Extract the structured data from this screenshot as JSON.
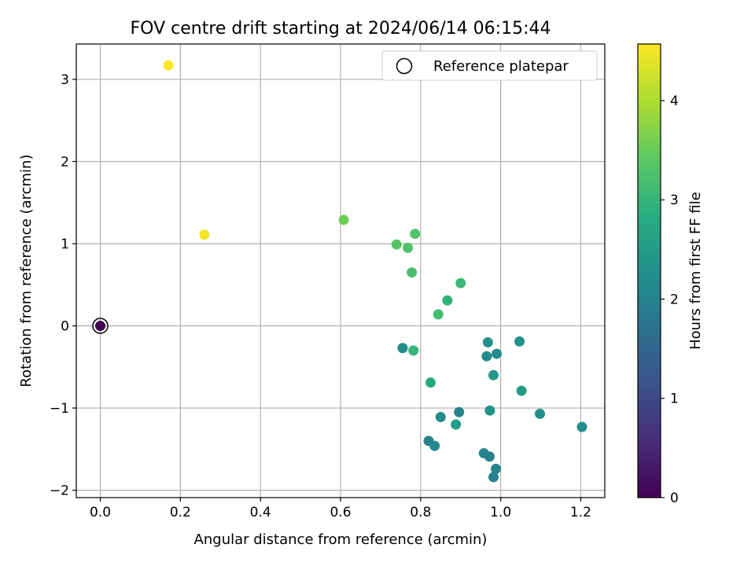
{
  "chart_data": {
    "type": "scatter",
    "title": "FOV centre drift starting at 2024/06/14 06:15:44",
    "xlabel": "Angular distance from reference (arcmin)",
    "ylabel": "Rotation from reference (arcmin)",
    "xlim": [
      -0.06,
      1.26
    ],
    "ylim": [
      -2.09,
      3.43
    ],
    "xticks": [
      0.0,
      0.2,
      0.4,
      0.6,
      0.8,
      1.0,
      1.2
    ],
    "xtick_labels": [
      "0.0",
      "0.2",
      "0.4",
      "0.6",
      "0.8",
      "1.0",
      "1.2"
    ],
    "yticks": [
      -2,
      -1,
      0,
      1,
      2,
      3
    ],
    "ytick_labels": [
      "−2",
      "−1",
      "0",
      "1",
      "2",
      "3"
    ],
    "grid": true,
    "legend": {
      "placement": "top-right",
      "entries": [
        "Reference platepar"
      ]
    },
    "colorbar": {
      "label": "Hours from first FF file",
      "colormap": "viridis",
      "range": [
        0,
        4.57
      ],
      "ticks": [
        0,
        1,
        2,
        3,
        4
      ],
      "tick_labels": [
        "0",
        "1",
        "2",
        "3",
        "4"
      ]
    },
    "reference_point": {
      "x": 0.0,
      "y": 0.0
    },
    "points": [
      {
        "x": 0.0,
        "y": 0.0,
        "c": 0.0
      },
      {
        "x": 0.17,
        "y": 3.17,
        "c": 4.55
      },
      {
        "x": 0.26,
        "y": 1.11,
        "c": 4.5
      },
      {
        "x": 0.608,
        "y": 1.29,
        "c": 3.55
      },
      {
        "x": 0.74,
        "y": 0.99,
        "c": 3.35
      },
      {
        "x": 0.768,
        "y": 0.95,
        "c": 3.25
      },
      {
        "x": 0.786,
        "y": 1.12,
        "c": 3.3
      },
      {
        "x": 0.778,
        "y": 0.65,
        "c": 3.2
      },
      {
        "x": 0.9,
        "y": 0.52,
        "c": 3.05
      },
      {
        "x": 0.867,
        "y": 0.31,
        "c": 2.95
      },
      {
        "x": 0.844,
        "y": 0.14,
        "c": 3.15
      },
      {
        "x": 0.755,
        "y": -0.27,
        "c": 2.2
      },
      {
        "x": 0.782,
        "y": -0.3,
        "c": 3.0
      },
      {
        "x": 0.825,
        "y": -0.69,
        "c": 2.75
      },
      {
        "x": 0.968,
        "y": -0.2,
        "c": 2.3
      },
      {
        "x": 0.965,
        "y": -0.37,
        "c": 2.15
      },
      {
        "x": 0.99,
        "y": -0.34,
        "c": 2.2
      },
      {
        "x": 1.047,
        "y": -0.19,
        "c": 2.3
      },
      {
        "x": 0.982,
        "y": -0.6,
        "c": 2.4
      },
      {
        "x": 1.052,
        "y": -0.79,
        "c": 2.5
      },
      {
        "x": 0.973,
        "y": -1.03,
        "c": 2.35
      },
      {
        "x": 0.896,
        "y": -1.05,
        "c": 2.05
      },
      {
        "x": 0.85,
        "y": -1.11,
        "c": 2.15
      },
      {
        "x": 0.888,
        "y": -1.2,
        "c": 2.5
      },
      {
        "x": 1.098,
        "y": -1.07,
        "c": 2.25
      },
      {
        "x": 1.203,
        "y": -1.23,
        "c": 2.2
      },
      {
        "x": 0.82,
        "y": -1.4,
        "c": 2.05
      },
      {
        "x": 0.835,
        "y": -1.46,
        "c": 2.15
      },
      {
        "x": 0.958,
        "y": -1.55,
        "c": 2.1
      },
      {
        "x": 0.972,
        "y": -1.59,
        "c": 1.95
      },
      {
        "x": 0.988,
        "y": -1.74,
        "c": 2.05
      },
      {
        "x": 0.982,
        "y": -1.84,
        "c": 2.0
      }
    ]
  }
}
